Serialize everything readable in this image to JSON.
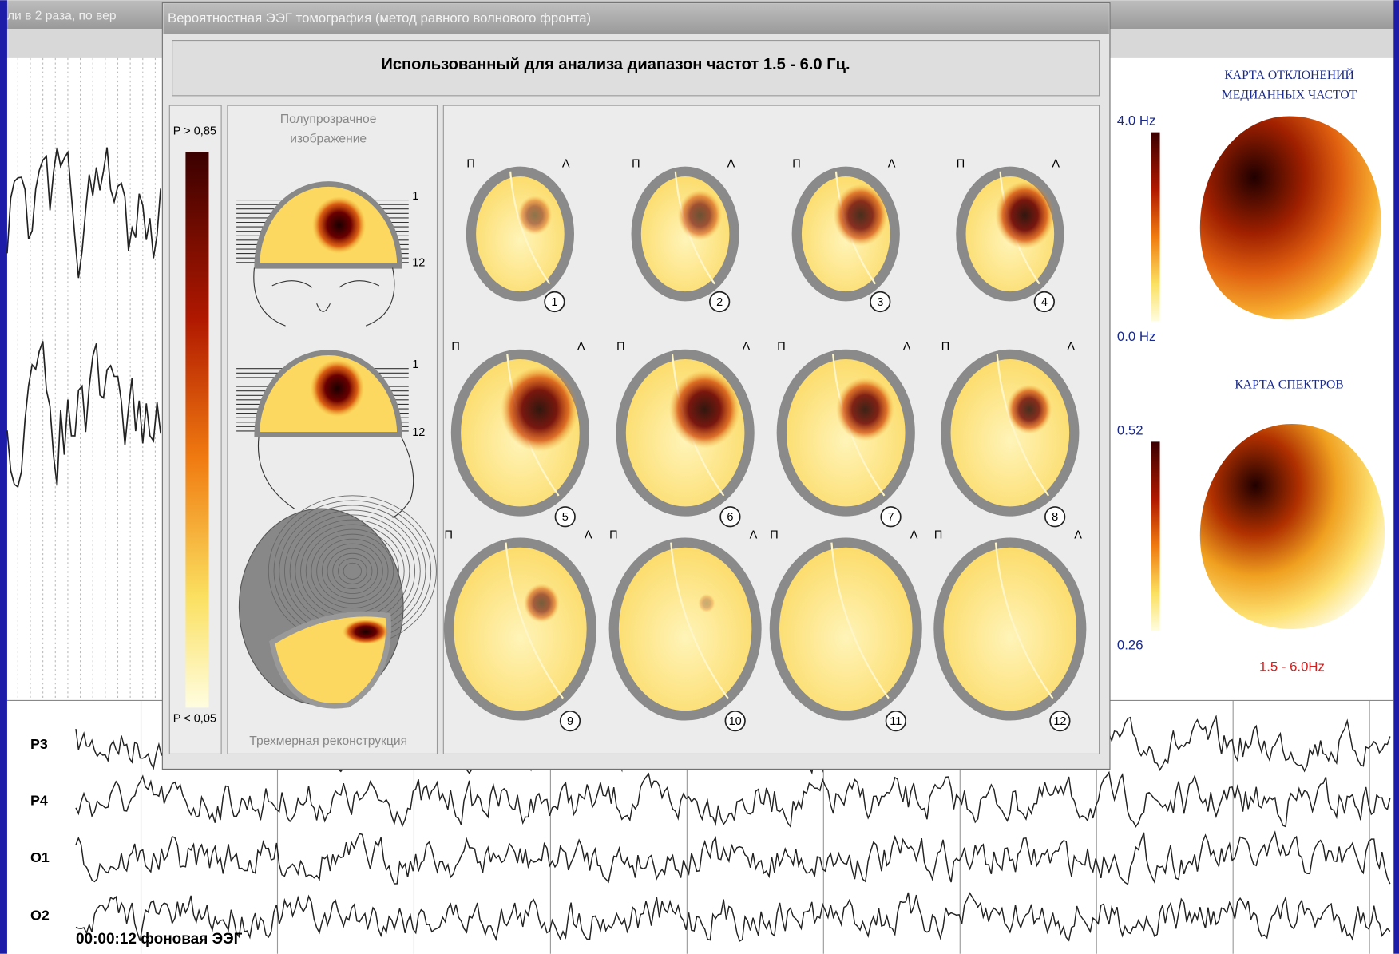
{
  "background_window": {
    "title_fragment": "ли в 2 раза, по вер",
    "channels": [
      "P3",
      "P4",
      "O1",
      "O2"
    ],
    "status": "00:00:12 фоновая ЭЭГ"
  },
  "dialog": {
    "title": "Вероятностная ЭЭГ томография (метод равного волнового фронта)",
    "header": "Использованный для анализа диапазон частот 1.5 - 6.0 Гц.",
    "scale": {
      "max_label": "P > 0,85",
      "min_label": "P < 0,05"
    },
    "preview": {
      "title_lines": [
        "Полупрозрачное",
        "изображение"
      ],
      "top_slice": 1,
      "bottom_slice": 12,
      "caption": "Трехмерная реконструкция"
    },
    "slices": {
      "left_label": "П",
      "right_label": "Λ",
      "numbers": [
        1,
        2,
        3,
        4,
        5,
        6,
        7,
        8,
        9,
        10,
        11,
        12
      ]
    }
  },
  "right_panel": {
    "deviation_map": {
      "title_lines": [
        "КАРТА ОТКЛОНЕНИЙ",
        "МЕДИАННЫХ ЧАСТОТ"
      ],
      "max_label": "4.0 Hz",
      "min_label": "0.0 Hz"
    },
    "spectrum_map": {
      "title": "КАРТА СПЕКТРОВ",
      "max_label": "0.52",
      "min_label": "0.26",
      "band": "1.5 - 6.0Hz"
    }
  }
}
